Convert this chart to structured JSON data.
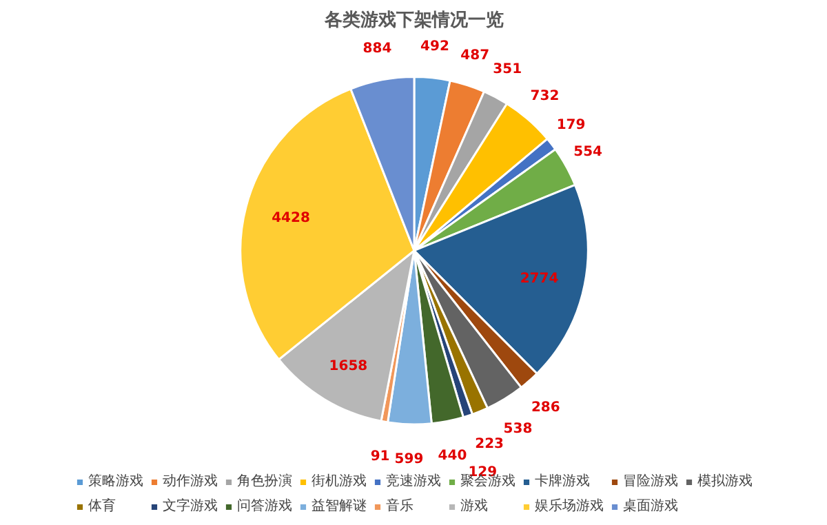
{
  "chart_data": {
    "type": "pie",
    "title": "各类游戏下架情况一览",
    "categories": [
      "策略游戏",
      "动作游戏",
      "角色扮演",
      "街机游戏",
      "竞速游戏",
      "聚会游戏",
      "卡牌游戏",
      "冒险游戏",
      "模拟游戏",
      "体育",
      "文字游戏",
      "问答游戏",
      "益智解谜",
      "音乐",
      "游戏",
      "娱乐场游戏",
      "桌面游戏"
    ],
    "values": [
      492,
      487,
      351,
      732,
      179,
      554,
      2774,
      286,
      538,
      223,
      129,
      440,
      599,
      91,
      1658,
      4428,
      884
    ],
    "colors": [
      "#5b9bd5",
      "#ed7d31",
      "#a5a5a5",
      "#ffc000",
      "#4472c4",
      "#70ad47",
      "#255e91",
      "#9e480e",
      "#636363",
      "#997300",
      "#264478",
      "#43682b",
      "#7cafdd",
      "#f1975a",
      "#b7b7b7",
      "#ffcd33",
      "#698ed0"
    ],
    "data_labels": true,
    "legend": "bottom"
  }
}
